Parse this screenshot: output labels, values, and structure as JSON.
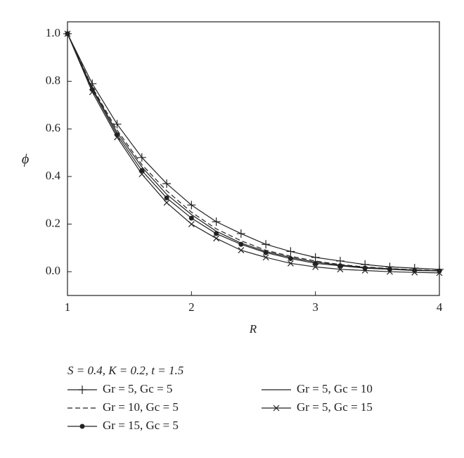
{
  "chart_data": {
    "type": "line",
    "x_label": "R",
    "y_label": "ϕ",
    "annotation": "S = 0.4, K = 0.2, t = 1.5",
    "x": [
      1,
      1.2,
      1.4,
      1.6,
      1.8,
      2,
      2.2,
      2.4,
      2.6,
      2.8,
      3,
      3.2,
      3.4,
      3.6,
      3.8,
      4
    ],
    "series": [
      {
        "name": "Gr = 5, Gc = 5",
        "color": "#222222",
        "marker": "plus",
        "dashed": false,
        "values": [
          1,
          0.79,
          0.62,
          0.48,
          0.37,
          0.28,
          0.21,
          0.16,
          0.115,
          0.085,
          0.06,
          0.045,
          0.03,
          0.02,
          0.015,
          0.01
        ]
      },
      {
        "name": "Gr = 10, Gc = 5",
        "color": "#222222",
        "marker": "none",
        "dashed": true,
        "values": [
          1,
          0.775,
          0.595,
          0.45,
          0.34,
          0.25,
          0.18,
          0.13,
          0.09,
          0.065,
          0.045,
          0.03,
          0.02,
          0.013,
          0.008,
          0.005
        ]
      },
      {
        "name": "Gr = 15, Gc = 5",
        "color": "#222222",
        "marker": "dot",
        "dashed": false,
        "values": [
          1,
          0.765,
          0.575,
          0.425,
          0.31,
          0.225,
          0.16,
          0.115,
          0.08,
          0.055,
          0.035,
          0.025,
          0.015,
          0.01,
          0.005,
          0.003
        ]
      },
      {
        "name": "Gr = 5, Gc = 10",
        "color": "#222222",
        "marker": "none",
        "dashed": false,
        "values": [
          1,
          0.77,
          0.585,
          0.44,
          0.325,
          0.24,
          0.17,
          0.12,
          0.085,
          0.06,
          0.04,
          0.028,
          0.018,
          0.012,
          0.007,
          0.004
        ]
      },
      {
        "name": "Gr = 5, Gc = 15",
        "color": "#222222",
        "marker": "x",
        "dashed": false,
        "values": [
          1,
          0.755,
          0.565,
          0.41,
          0.29,
          0.2,
          0.14,
          0.09,
          0.06,
          0.035,
          0.02,
          0.01,
          0.005,
          0,
          -0.003,
          -0.005
        ]
      }
    ],
    "xlim": [
      1,
      4
    ],
    "xticks": [
      1,
      2,
      3,
      4
    ],
    "ylim": [
      -0.1,
      1.05
    ],
    "yticks": [
      {
        "value": 0,
        "label": "0.0"
      },
      0.2,
      0.4,
      0.6,
      0.8,
      {
        "value": 1,
        "label": "1.0"
      }
    ]
  }
}
